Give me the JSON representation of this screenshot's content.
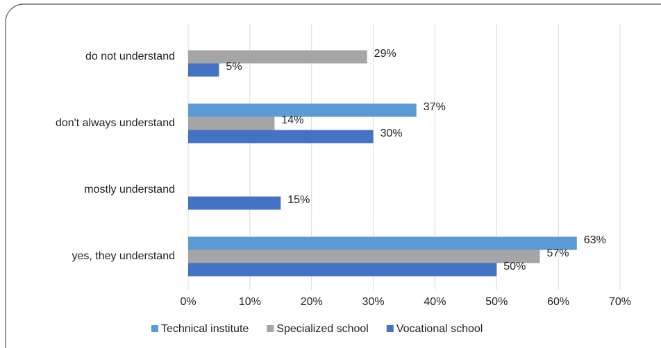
{
  "chart_data": {
    "type": "hbar",
    "categories": [
      "do not understand",
      "don't always understand",
      "mostly understand",
      "yes, they understand"
    ],
    "series": [
      {
        "name": "Technical institute",
        "color": "#5b9bd5",
        "values": [
          null,
          37,
          null,
          63
        ],
        "value_labels": [
          null,
          "37%",
          null,
          "63%"
        ]
      },
      {
        "name": "Specialized school",
        "color": "#a5a5a5",
        "values": [
          29,
          14,
          null,
          57
        ],
        "value_labels": [
          "29%",
          "14%",
          null,
          "57%"
        ]
      },
      {
        "name": "Vocational school",
        "color": "#4472c4",
        "values": [
          5,
          30,
          15,
          50
        ],
        "value_labels": [
          "5%",
          "30%",
          "15%",
          "50%"
        ]
      }
    ],
    "xlim": [
      0,
      70
    ],
    "xticks": [
      {
        "value": 0,
        "label": "0%"
      },
      {
        "value": 10,
        "label": "10%"
      },
      {
        "value": 20,
        "label": "20%"
      },
      {
        "value": 30,
        "label": "30%"
      },
      {
        "value": 40,
        "label": "40%"
      },
      {
        "value": 50,
        "label": "50%"
      },
      {
        "value": 60,
        "label": "60%"
      },
      {
        "value": 70,
        "label": "70%"
      }
    ],
    "grid": true,
    "legend": "bottom"
  }
}
